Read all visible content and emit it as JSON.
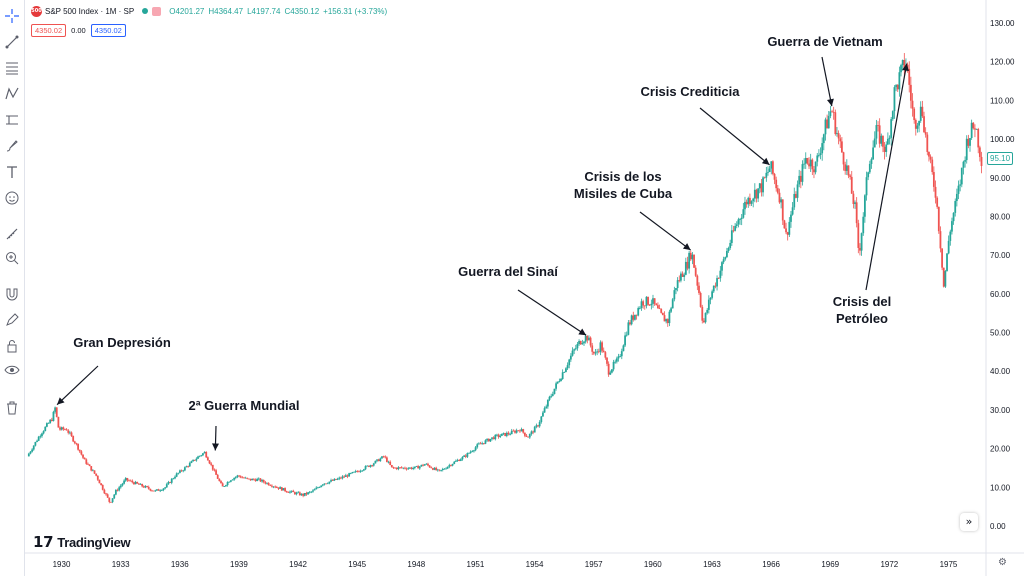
{
  "header": {
    "badge": "500",
    "symbol": "S&P 500 Index · 1M · SP",
    "ohlc": [
      "O4201.27",
      "H4364.47",
      "L4197.74",
      "C4350.12",
      "+156.31 (+3.73%)"
    ],
    "bid": "4350.02",
    "spread": "0.00",
    "ask": "4350.02"
  },
  "logo": {
    "mark": "17",
    "text": "TradingView"
  },
  "toolbar_icons": [
    "crosshair-icon",
    "trend-line-icon",
    "fib-icon",
    "pattern-icon",
    "measure-icon",
    "brush-icon",
    "text-icon",
    "emoji-icon",
    "ruler-icon",
    "zoom-in-icon",
    "magnet-icon",
    "pencil-lock-icon",
    "lock-icon",
    "eye-icon",
    "trash-icon"
  ],
  "controls": {
    "scroll_right": "»",
    "settings": "⚙"
  },
  "chart_data": {
    "type": "candlestick",
    "title": "S&P 500 Index · 1M · SP",
    "last_price": "95.10",
    "ylim": [
      0,
      130
    ],
    "y_ticks": [
      "0.00",
      "10.00",
      "20.00",
      "30.00",
      "40.00",
      "50.00",
      "60.00",
      "70.00",
      "80.00",
      "90.00",
      "100.00",
      "110.00",
      "120.00",
      "130.00"
    ],
    "y_tick_values": [
      0,
      10,
      20,
      30,
      40,
      50,
      60,
      70,
      80,
      90,
      100,
      110,
      120,
      130
    ],
    "x_ticks": [
      "1930",
      "1933",
      "1936",
      "1939",
      "1942",
      "1945",
      "1948",
      "1951",
      "1954",
      "1957",
      "1960",
      "1963",
      "1966",
      "1969",
      "1972",
      "1975"
    ],
    "x_tick_values": [
      1930,
      1933,
      1936,
      1939,
      1942,
      1945,
      1948,
      1951,
      1954,
      1957,
      1960,
      1963,
      1966,
      1969,
      1972,
      1975
    ],
    "xlim": [
      1928.3,
      1976.7
    ],
    "path": [
      [
        1928.3,
        18
      ],
      [
        1929.0,
        24
      ],
      [
        1929.6,
        28
      ],
      [
        1929.7,
        31
      ],
      [
        1929.9,
        25
      ],
      [
        1930.3,
        25
      ],
      [
        1930.8,
        21
      ],
      [
        1931.2,
        17
      ],
      [
        1931.8,
        13
      ],
      [
        1932.3,
        8
      ],
      [
        1932.5,
        6
      ],
      [
        1932.8,
        9
      ],
      [
        1933.3,
        12
      ],
      [
        1933.8,
        11
      ],
      [
        1934.3,
        10
      ],
      [
        1934.8,
        9
      ],
      [
        1935.3,
        10
      ],
      [
        1935.8,
        13
      ],
      [
        1936.3,
        15
      ],
      [
        1937.0,
        18
      ],
      [
        1937.3,
        19
      ],
      [
        1937.8,
        14
      ],
      [
        1938.2,
        10
      ],
      [
        1938.6,
        12
      ],
      [
        1939.0,
        13
      ],
      [
        1939.5,
        12
      ],
      [
        1940.0,
        12
      ],
      [
        1940.5,
        11
      ],
      [
        1941.0,
        10
      ],
      [
        1941.5,
        9
      ],
      [
        1942.3,
        8
      ],
      [
        1942.8,
        9
      ],
      [
        1943.3,
        11
      ],
      [
        1944.0,
        12
      ],
      [
        1945.0,
        14
      ],
      [
        1945.8,
        16
      ],
      [
        1946.4,
        18
      ],
      [
        1946.8,
        15
      ],
      [
        1947.3,
        15
      ],
      [
        1948.0,
        15
      ],
      [
        1948.5,
        16
      ],
      [
        1949.2,
        14
      ],
      [
        1949.8,
        16
      ],
      [
        1950.5,
        18
      ],
      [
        1951.2,
        21
      ],
      [
        1952.0,
        23
      ],
      [
        1952.8,
        24
      ],
      [
        1953.3,
        25
      ],
      [
        1953.7,
        23
      ],
      [
        1954.2,
        26
      ],
      [
        1954.8,
        33
      ],
      [
        1955.5,
        40
      ],
      [
        1956.0,
        45
      ],
      [
        1956.4,
        48
      ],
      [
        1956.7,
        49
      ],
      [
        1957.1,
        44
      ],
      [
        1957.4,
        47
      ],
      [
        1957.8,
        40
      ],
      [
        1958.3,
        43
      ],
      [
        1958.8,
        52
      ],
      [
        1959.5,
        58
      ],
      [
        1960.0,
        58
      ],
      [
        1960.5,
        54
      ],
      [
        1960.8,
        53
      ],
      [
        1961.2,
        62
      ],
      [
        1961.8,
        68
      ],
      [
        1962.0,
        71
      ],
      [
        1962.4,
        60
      ],
      [
        1962.6,
        52
      ],
      [
        1963.0,
        60
      ],
      [
        1963.6,
        68
      ],
      [
        1964.2,
        77
      ],
      [
        1964.8,
        84
      ],
      [
        1965.6,
        88
      ],
      [
        1966.0,
        93
      ],
      [
        1966.5,
        85
      ],
      [
        1966.8,
        75
      ],
      [
        1967.3,
        86
      ],
      [
        1967.8,
        95
      ],
      [
        1968.3,
        93
      ],
      [
        1968.8,
        103
      ],
      [
        1969.1,
        108
      ],
      [
        1969.5,
        99
      ],
      [
        1969.9,
        92
      ],
      [
        1970.3,
        82
      ],
      [
        1970.5,
        70
      ],
      [
        1971.0,
        94
      ],
      [
        1971.4,
        102
      ],
      [
        1971.9,
        97
      ],
      [
        1972.3,
        112
      ],
      [
        1972.7,
        118
      ],
      [
        1972.9,
        120
      ],
      [
        1973.3,
        104
      ],
      [
        1973.7,
        108
      ],
      [
        1974.0,
        96
      ],
      [
        1974.4,
        86
      ],
      [
        1974.7,
        69
      ],
      [
        1974.8,
        62
      ],
      [
        1975.1,
        76
      ],
      [
        1975.6,
        88
      ],
      [
        1976.0,
        100
      ],
      [
        1976.4,
        104
      ],
      [
        1976.7,
        95
      ]
    ],
    "annotations": [
      {
        "label": [
          "Gran Depresión"
        ],
        "point": [
          1929.7,
          31
        ]
      },
      {
        "label": [
          "2ª Guerra Mundial"
        ],
        "point": [
          1937.8,
          19
        ]
      },
      {
        "label": [
          "Guerra del Sinaí"
        ],
        "point": [
          1956.7,
          49
        ]
      },
      {
        "label": [
          "Crisis de los",
          "Misiles de Cuba"
        ],
        "point": [
          1962.0,
          71
        ]
      },
      {
        "label": [
          "Crisis Crediticia"
        ],
        "point": [
          1966.0,
          93
        ]
      },
      {
        "label": [
          "Guerra de Vietnam"
        ],
        "point": [
          1969.1,
          108
        ]
      },
      {
        "label": [
          "Crisis del",
          "Petróleo"
        ],
        "point": [
          1972.9,
          120
        ]
      }
    ],
    "up_color": "#26a69a",
    "down_color": "#ef5350"
  }
}
